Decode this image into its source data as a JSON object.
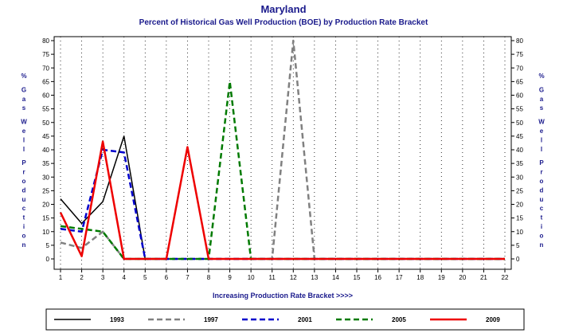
{
  "chart_data": {
    "type": "line",
    "title": "Maryland",
    "subtitle": "Percent of Historical Gas Well Production (BOE) by Production Rate Bracket",
    "xlabel": "Increasing Production Rate Bracket >>>>",
    "ylabel": "% Gas Well Production",
    "x": [
      1,
      2,
      3,
      4,
      5,
      6,
      7,
      8,
      9,
      10,
      11,
      12,
      13,
      14,
      15,
      16,
      17,
      18,
      19,
      20,
      21,
      22
    ],
    "xlim": [
      1,
      22
    ],
    "ylim": [
      0,
      80
    ],
    "yticks": [
      0,
      5,
      10,
      15,
      20,
      25,
      30,
      35,
      40,
      45,
      50,
      55,
      60,
      65,
      70,
      75,
      80
    ],
    "grid": true,
    "legend_position": "bottom",
    "series": [
      {
        "name": "1993",
        "color": "#000000",
        "dash": "solid",
        "width": 1.5,
        "values": [
          22,
          13,
          21,
          45,
          0,
          0,
          0,
          0,
          0,
          0,
          0,
          0,
          0,
          0,
          0,
          0,
          0,
          0,
          0,
          0,
          0,
          0
        ]
      },
      {
        "name": "1997",
        "color": "#808080",
        "dash": "dashed",
        "width": 2.5,
        "values": [
          6,
          4,
          10,
          0,
          0,
          0,
          0,
          0,
          0,
          0,
          0,
          80,
          0,
          0,
          0,
          0,
          0,
          0,
          0,
          0,
          0,
          0
        ]
      },
      {
        "name": "2001",
        "color": "#0000cc",
        "dash": "dashed",
        "width": 2.5,
        "values": [
          11,
          10,
          40,
          39,
          0,
          0,
          0,
          0,
          0,
          0,
          0,
          0,
          0,
          0,
          0,
          0,
          0,
          0,
          0,
          0,
          0,
          0
        ]
      },
      {
        "name": "2005",
        "color": "#007a00",
        "dash": "dashed",
        "width": 2.5,
        "values": [
          12,
          11,
          10,
          0,
          0,
          0,
          0,
          0,
          65,
          0,
          0,
          0,
          0,
          0,
          0,
          0,
          0,
          0,
          0,
          0,
          0,
          0
        ]
      },
      {
        "name": "2009",
        "color": "#ee0000",
        "dash": "solid",
        "width": 2.5,
        "values": [
          17,
          1,
          43,
          0,
          0,
          0,
          41,
          0,
          0,
          0,
          0,
          0,
          0,
          0,
          0,
          0,
          0,
          0,
          0,
          0,
          0,
          0
        ]
      }
    ]
  }
}
